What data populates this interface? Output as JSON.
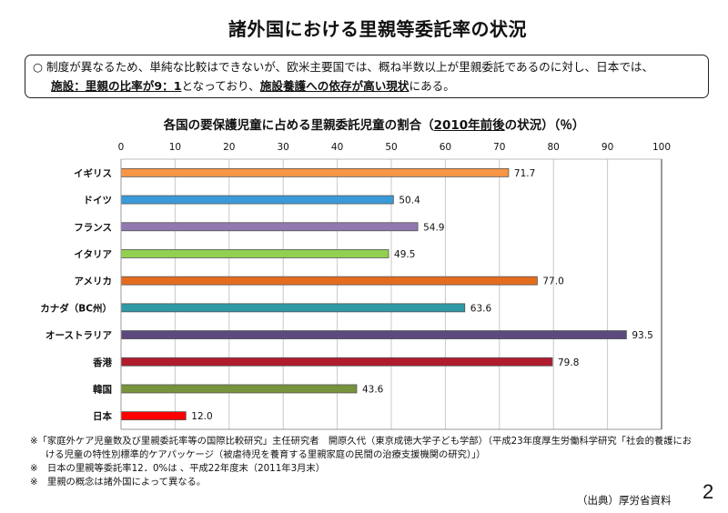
{
  "page": {
    "title": "諸外国における里親等委託率の状況",
    "page_number": "2",
    "source": "（出典）厚労省資料"
  },
  "summary": {
    "bullet": "○",
    "line1": "制度が異なるため、単純な比較はできないが、欧米主要国では、概ね半数以上が里親委託であるのに対し、日本では、",
    "line2_part1_underlined": "施設：里親の比率が9：1",
    "line2_part2": "となっており、",
    "line2_part3_underlined": "施設養護への依存が高い現状",
    "line2_part4": "にある。"
  },
  "chart_data": {
    "type": "bar",
    "orientation": "horizontal",
    "title_parts": {
      "prefix": "各国の要保護児童に占める里親委託児童の割合（",
      "underlined": "2010年前後",
      "suffix": "の状況）（％）"
    },
    "title": "各国の要保護児童に占める里親委託児童の割合（2010年前後の状況）（％）",
    "xlabel": "",
    "ylabel": "",
    "xlim": [
      0,
      100
    ],
    "x_ticks": [
      0,
      10,
      20,
      30,
      40,
      50,
      60,
      70,
      80,
      90,
      100
    ],
    "grid": true,
    "legend": "none",
    "categories": [
      "イギリス",
      "ドイツ",
      "フランス",
      "イタリア",
      "アメリカ",
      "カナダ（BC州）",
      "オーストラリア",
      "香港",
      "韓国",
      "日本"
    ],
    "values": [
      71.7,
      50.4,
      54.9,
      49.5,
      77.0,
      63.6,
      93.5,
      79.8,
      43.6,
      12.0
    ],
    "value_labels": [
      "71.7",
      "50.4",
      "54.9",
      "49.5",
      "77.0",
      "63.6",
      "93.5",
      "79.8",
      "43.6",
      "12.0"
    ],
    "colors": [
      "#f79646",
      "#3a9ad9",
      "#9178b0",
      "#92d050",
      "#e46c1e",
      "#2e9aa6",
      "#5c4a7e",
      "#b01c2e",
      "#77933c",
      "#ff0000"
    ]
  },
  "notes": [
    "※「家庭外ケア児童数及び里親委託率等の国際比較研究」主任研究者　開原久代（東京成徳大学子ども学部）（平成23年度厚生労働科学研究「社会的養護にお",
    "ける児童の特性別標準的ケアパッケージ（被虐待児を養育する里親家庭の民間の治療支援機関の研究）」）",
    "※　日本の里親等委託率12．0%は 、平成22年度末（2011年3月末）",
    "※　里親の概念は諸外国によって異なる。"
  ]
}
